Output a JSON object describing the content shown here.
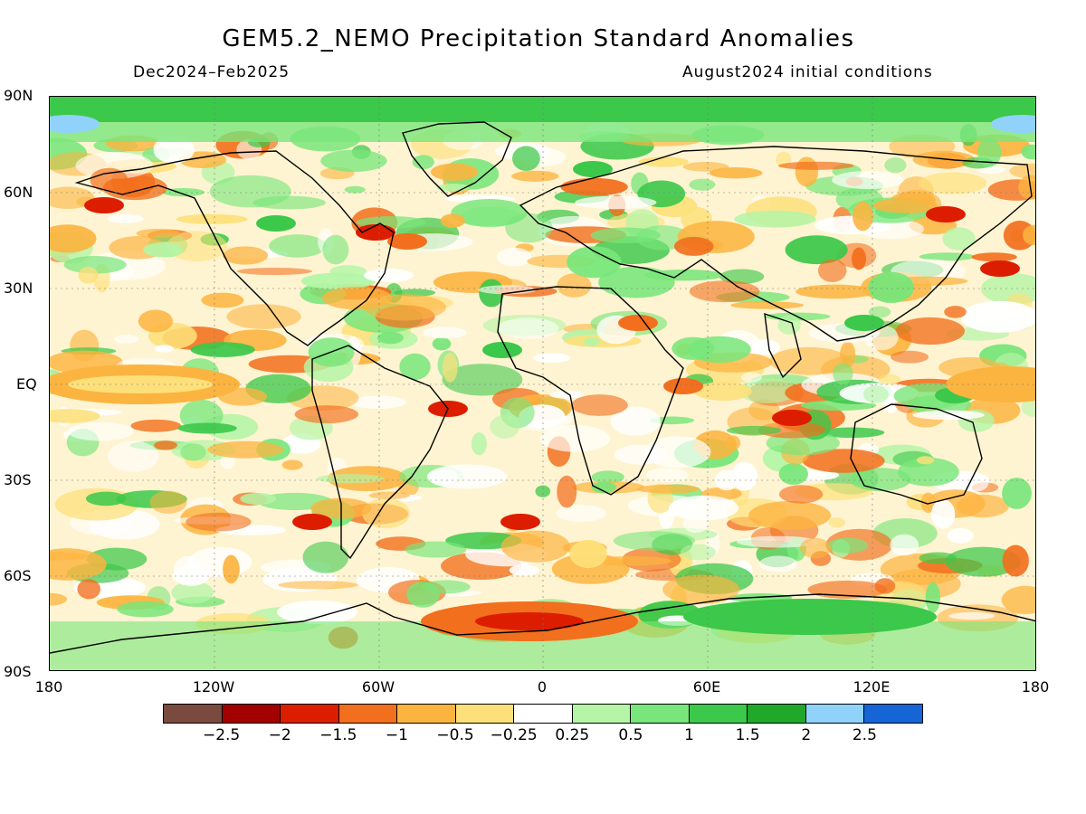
{
  "title": "GEM5.2_NEMO Precipitation Standard Anomalies",
  "period": "Dec2024–Feb2025",
  "init": "August2024 initial conditions",
  "lat_labels": [
    "90N",
    "60N",
    "30N",
    "EQ",
    "30S",
    "60S",
    "90S"
  ],
  "lon_labels": [
    "180",
    "120W",
    "60W",
    "0",
    "60E",
    "120E",
    "180"
  ],
  "colorbar": {
    "colors": [
      "#7a4a3f",
      "#a30000",
      "#dc1d00",
      "#f26f1d",
      "#fcb440",
      "#fde07a",
      "#ffffff",
      "#b4f5a6",
      "#78e67a",
      "#3cc84a",
      "#1fa82a",
      "#91d2fa",
      "#1665d6"
    ],
    "labels": [
      "−2.5",
      "−2",
      "−1.5",
      "−1",
      "−0.5",
      "−0.25",
      "0.25",
      "0.5",
      "1",
      "1.5",
      "2",
      "2.5"
    ]
  }
}
